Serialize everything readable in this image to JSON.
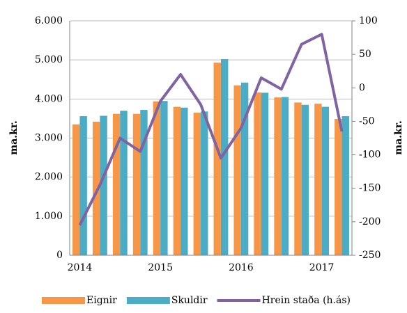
{
  "chart_data": {
    "type": "bar",
    "categories": [
      "2014",
      null,
      null,
      null,
      "2015",
      null,
      null,
      null,
      "2016",
      null,
      null,
      null,
      "2017",
      null
    ],
    "series": [
      {
        "name": "Eignir",
        "color": "#f79646",
        "values": [
          3350,
          3420,
          3620,
          3620,
          3940,
          3800,
          3650,
          4930,
          4350,
          4170,
          4040,
          3910,
          3880,
          3490
        ]
      },
      {
        "name": "Skuldir",
        "color": "#4bacc6",
        "values": [
          3560,
          3570,
          3700,
          3720,
          3950,
          3780,
          3680,
          5020,
          4420,
          4160,
          4050,
          3850,
          3800,
          3560
        ]
      },
      {
        "name": "Hrein staða (h.ás)",
        "color": "#8064a2",
        "type": "line",
        "axis": "y2",
        "values": [
          -205,
          -145,
          -75,
          -95,
          -20,
          20,
          -25,
          -105,
          -60,
          15,
          -2,
          65,
          80,
          -65
        ]
      }
    ],
    "ylabel": "ma.kr.",
    "y2label": "ma.kr.",
    "ylim": [
      0,
      6000
    ],
    "yticks": [
      0,
      {
        "value": 1000,
        "label": "1.000"
      },
      {
        "value": 2000,
        "label": "2.000"
      },
      {
        "value": 3000,
        "label": "3.000"
      },
      {
        "value": 4000,
        "label": "4.000"
      },
      {
        "value": 5000,
        "label": "5.000"
      },
      {
        "value": 6000,
        "label": "6.000"
      }
    ],
    "y2lim": [
      -250,
      100
    ],
    "y2ticks": [
      -250,
      -200,
      -150,
      -100,
      -50,
      0,
      50,
      100
    ],
    "grid": true,
    "legend": "bottom"
  }
}
